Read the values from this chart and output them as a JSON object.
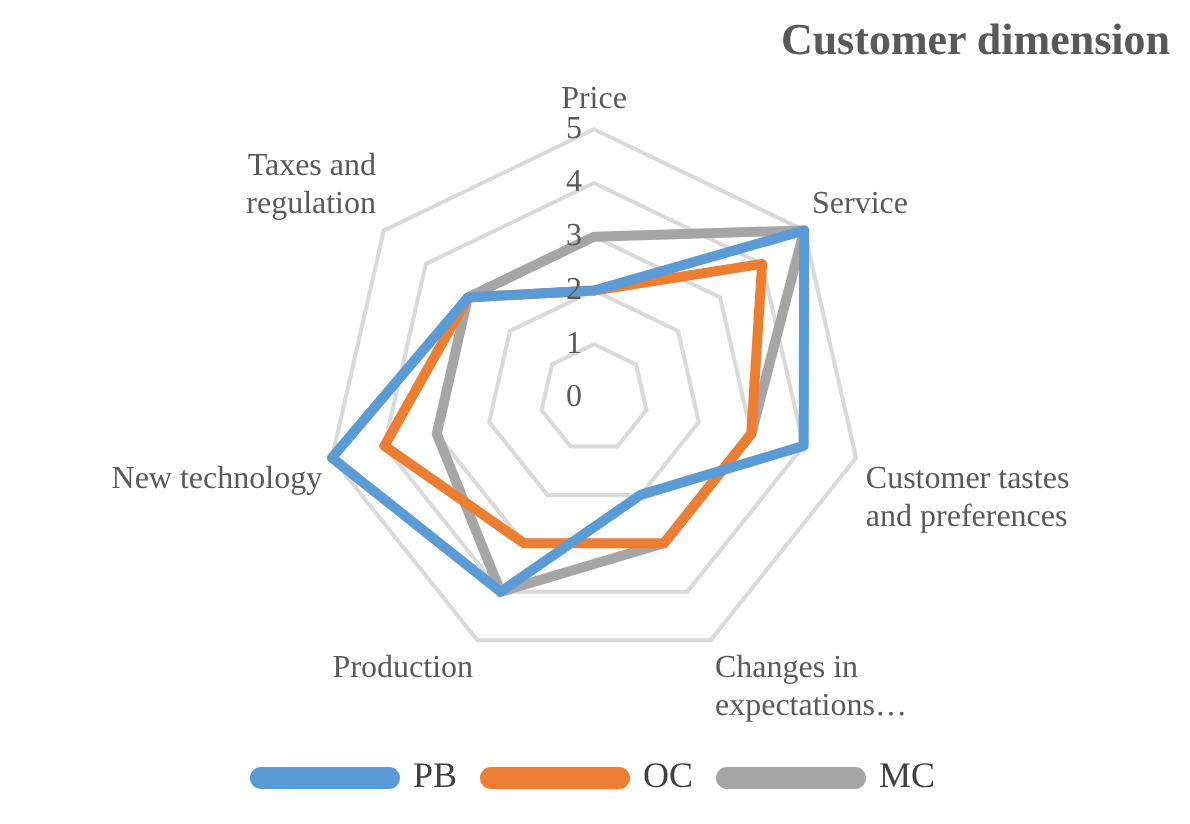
{
  "chart_data": {
    "type": "radar",
    "title": "Customer dimension",
    "categories": [
      "Price",
      "Service",
      "Customer tastes and preferences",
      "Changes in expectations…",
      "Production",
      "New technology",
      "Taxes and regulation"
    ],
    "series": [
      {
        "name": "PB",
        "color": "#5b9bd5",
        "values": [
          2,
          5,
          4,
          2,
          4,
          5,
          3
        ]
      },
      {
        "name": "OC",
        "color": "#ed7d31",
        "values": [
          2,
          4,
          3,
          3,
          3,
          4,
          3
        ]
      },
      {
        "name": "MC",
        "color": "#a5a5a5",
        "values": [
          3,
          5,
          3,
          3,
          4,
          3,
          3
        ]
      }
    ],
    "ylim": [
      0,
      5
    ],
    "yticks": [
      0,
      1,
      2,
      3,
      4,
      5
    ],
    "grid": true,
    "legend": "bottom",
    "marker": "none"
  }
}
